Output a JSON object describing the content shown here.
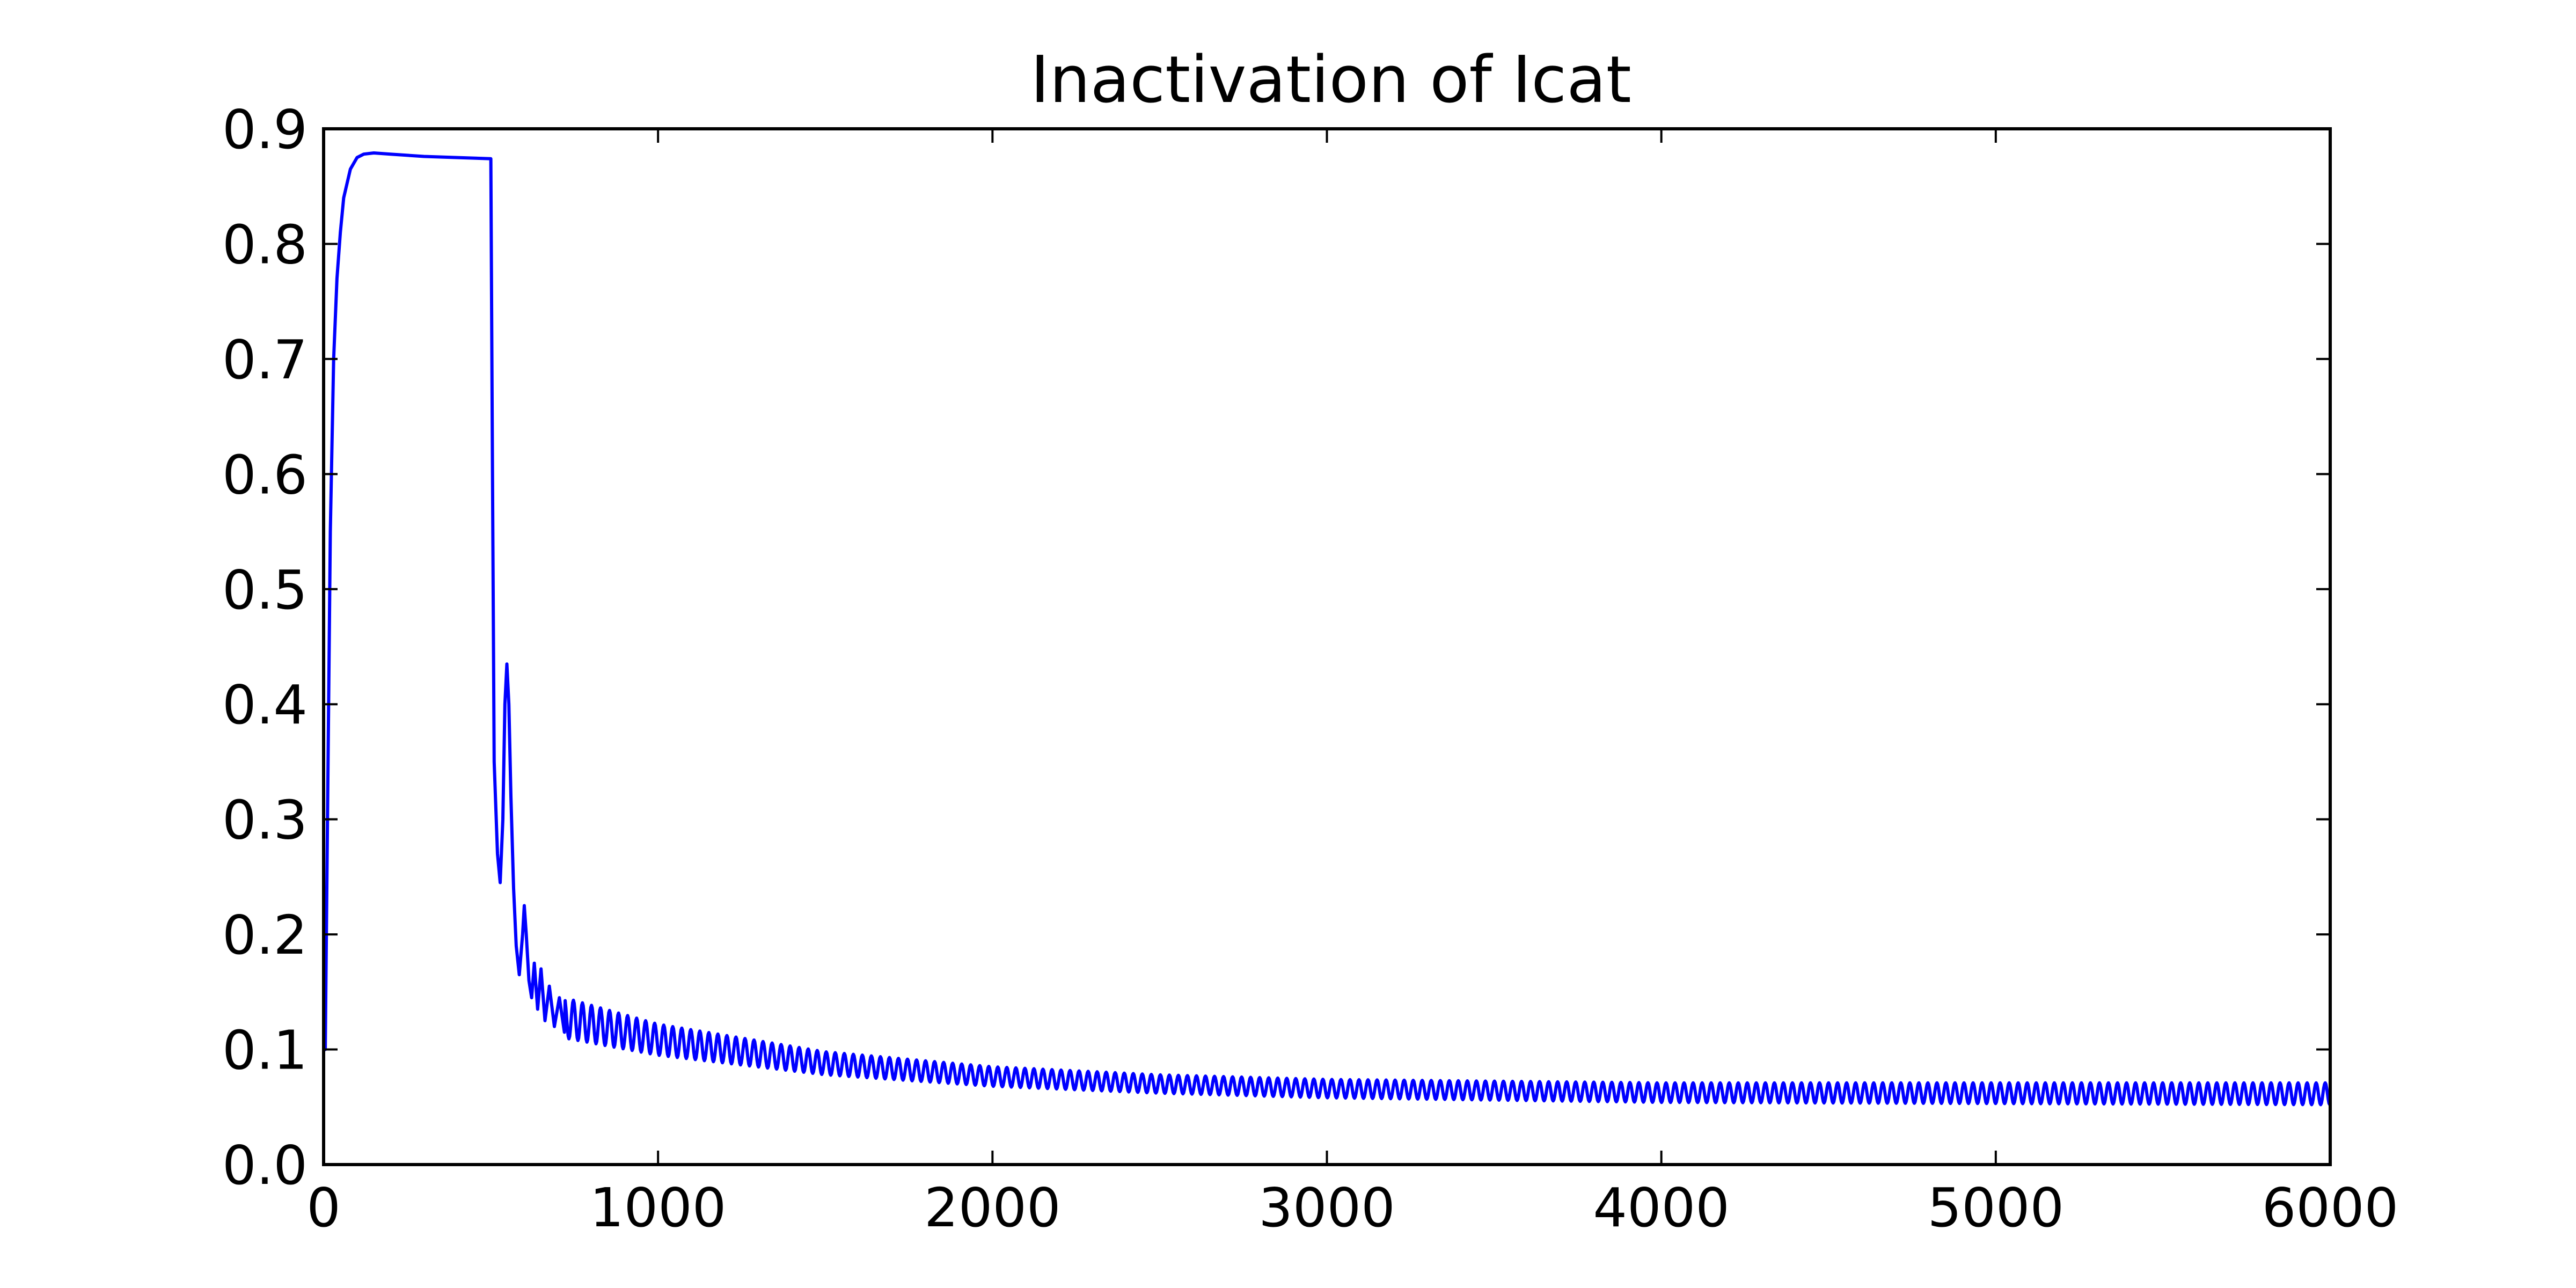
{
  "chart_data": {
    "type": "line",
    "title": "Inactivation of Icat",
    "xlabel": "",
    "ylabel": "",
    "xlim": [
      0,
      6000
    ],
    "ylim": [
      0.0,
      0.9
    ],
    "x_ticks": [
      "0",
      "1000",
      "2000",
      "3000",
      "4000",
      "5000",
      "6000"
    ],
    "y_ticks": [
      "0.0",
      "0.1",
      "0.2",
      "0.3",
      "0.4",
      "0.5",
      "0.6",
      "0.7",
      "0.8",
      "0.9"
    ],
    "grid": false,
    "legend": "none",
    "series": [
      {
        "color": "#0000ff",
        "points": [
          [
            0,
            0.1
          ],
          [
            5,
            0.1
          ],
          [
            10,
            0.25
          ],
          [
            20,
            0.55
          ],
          [
            30,
            0.7
          ],
          [
            40,
            0.77
          ],
          [
            50,
            0.81
          ],
          [
            60,
            0.84
          ],
          [
            80,
            0.865
          ],
          [
            100,
            0.875
          ],
          [
            120,
            0.878
          ],
          [
            150,
            0.879
          ],
          [
            200,
            0.878
          ],
          [
            300,
            0.876
          ],
          [
            400,
            0.875
          ],
          [
            500,
            0.874
          ],
          [
            505,
            0.6
          ],
          [
            510,
            0.35
          ],
          [
            520,
            0.27
          ],
          [
            528,
            0.245
          ],
          [
            536,
            0.3
          ],
          [
            542,
            0.4
          ],
          [
            548,
            0.435
          ],
          [
            554,
            0.4
          ],
          [
            560,
            0.32
          ],
          [
            568,
            0.24
          ],
          [
            576,
            0.19
          ],
          [
            585,
            0.165
          ],
          [
            595,
            0.2
          ],
          [
            600,
            0.225
          ],
          [
            606,
            0.2
          ],
          [
            614,
            0.16
          ],
          [
            622,
            0.145
          ],
          [
            630,
            0.175
          ],
          [
            640,
            0.135
          ],
          [
            650,
            0.17
          ],
          [
            662,
            0.125
          ],
          [
            675,
            0.155
          ],
          [
            690,
            0.12
          ],
          [
            705,
            0.145
          ],
          [
            720,
            0.115
          ]
        ]
      }
    ],
    "oscillation": {
      "start_x": 720,
      "end_x": 6000,
      "period": 27,
      "upper_envelope": [
        [
          720,
          0.145
        ],
        [
          1000,
          0.122
        ],
        [
          1500,
          0.098
        ],
        [
          2000,
          0.085
        ],
        [
          2500,
          0.078
        ],
        [
          3000,
          0.074
        ],
        [
          4000,
          0.071
        ],
        [
          6000,
          0.071
        ]
      ],
      "lower_envelope": [
        [
          720,
          0.11
        ],
        [
          1000,
          0.095
        ],
        [
          1500,
          0.078
        ],
        [
          2000,
          0.068
        ],
        [
          2500,
          0.062
        ],
        [
          3000,
          0.058
        ],
        [
          4000,
          0.054
        ],
        [
          6000,
          0.052
        ]
      ]
    }
  }
}
